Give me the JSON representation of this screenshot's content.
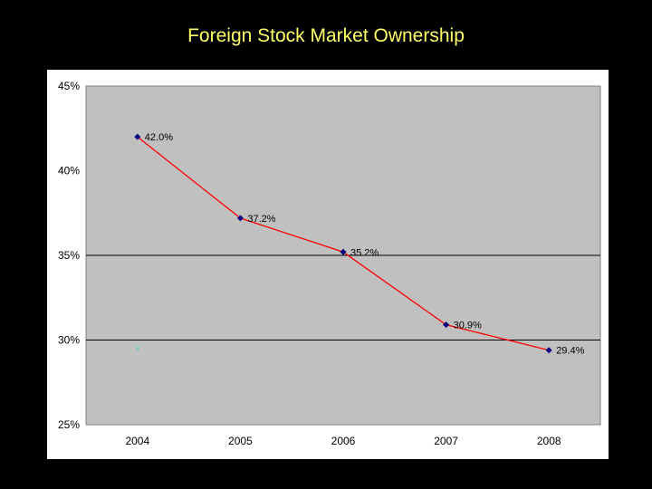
{
  "slide": {
    "title": "Foreign Stock Market Ownership"
  },
  "colors": {
    "background": "#000000",
    "title": "#FFFF66",
    "plot_area": "#C0C0C0",
    "line": "#FF0000",
    "marker": "#000080",
    "stray_marker": "#66CCCC"
  },
  "chart_data": {
    "type": "line",
    "title": "",
    "xlabel": "",
    "ylabel": "",
    "categories": [
      "2004",
      "2005",
      "2006",
      "2007",
      "2008"
    ],
    "series": [
      {
        "values": [
          0.42,
          0.372,
          0.352,
          0.309,
          0.294
        ]
      }
    ],
    "data_labels": [
      "42.0%",
      "37.2%",
      "35.2%",
      "30.9%",
      "29.4%"
    ],
    "y_ticks": [
      0.25,
      0.3,
      0.35,
      0.4,
      0.45
    ],
    "y_tick_labels": [
      "25%",
      "30%",
      "35%",
      "40%",
      "45%"
    ],
    "ylim": [
      0.25,
      0.45
    ],
    "gridlines": [
      0.3,
      0.35
    ],
    "legend": "none",
    "stray_marker": {
      "x": "2004",
      "y": 0.295
    }
  }
}
